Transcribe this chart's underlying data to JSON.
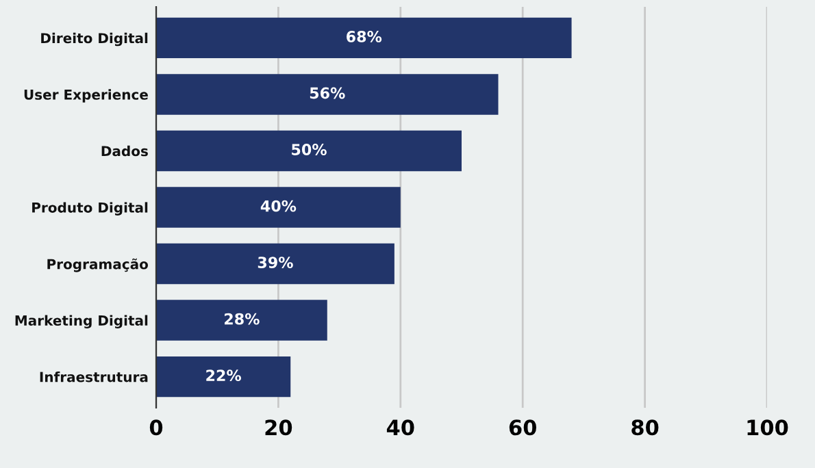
{
  "chart_data": {
    "type": "bar",
    "orientation": "horizontal",
    "categories": [
      "Direito Digital",
      "User Experience",
      "Dados",
      "Produto Digital",
      "Programação",
      "Marketing Digital",
      "Infraestrutura"
    ],
    "values": [
      68,
      56,
      50,
      40,
      39,
      28,
      22
    ],
    "value_labels": [
      "68%",
      "56%",
      "50%",
      "40%",
      "39%",
      "28%",
      "22%"
    ],
    "color": "#22356a",
    "xlim": [
      0,
      100
    ],
    "xticks": [
      0,
      20,
      40,
      60,
      80,
      100
    ],
    "grid": "x",
    "legend": false
  }
}
